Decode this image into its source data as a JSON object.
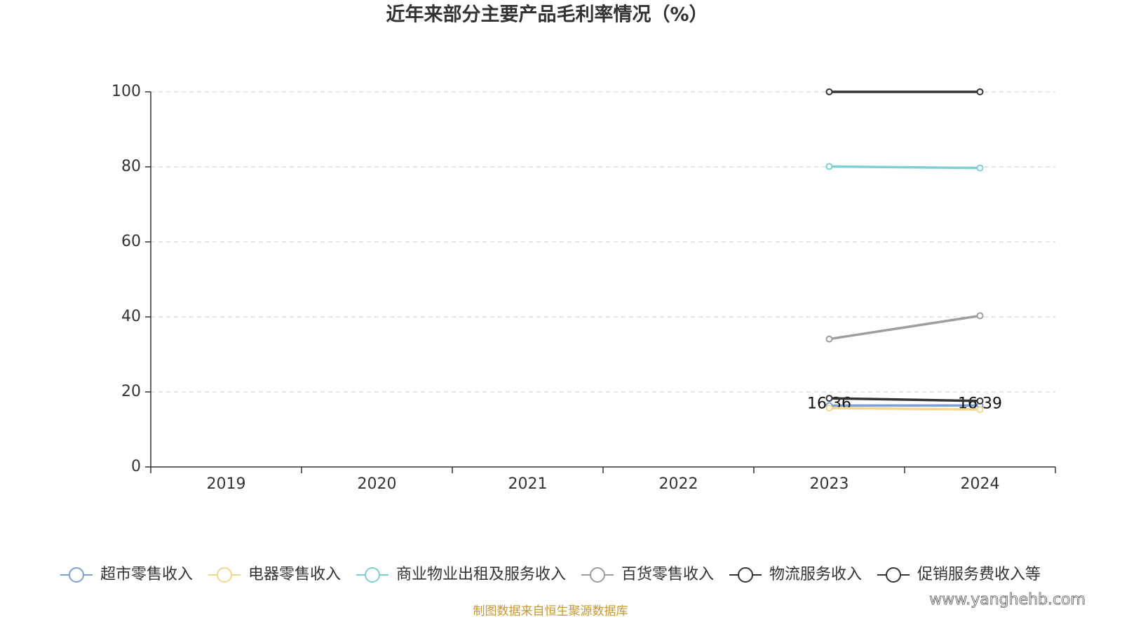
{
  "chart_data": {
    "type": "line",
    "title": "近年来部分主要产品毛利率情况（%）",
    "categories": [
      "2019",
      "2020",
      "2021",
      "2022",
      "2023",
      "2024"
    ],
    "series": [
      {
        "name": "超市零售收入",
        "color": "#7b9fd8",
        "values": [
          null,
          null,
          null,
          null,
          16.36,
          16.39
        ],
        "show_labels": true
      },
      {
        "name": "电器零售收入",
        "color": "#f7d58c",
        "values": [
          null,
          null,
          null,
          null,
          15.7,
          15.3
        ]
      },
      {
        "name": "商业物业出租及服务收入",
        "color": "#7dd0d4",
        "values": [
          null,
          null,
          null,
          null,
          80.1,
          79.7
        ]
      },
      {
        "name": "百货零售收入",
        "color": "#9e9e9e",
        "values": [
          null,
          null,
          null,
          null,
          34.1,
          40.3
        ]
      },
      {
        "name": "物流服务收入",
        "color": "#333333",
        "values": [
          null,
          null,
          null,
          null,
          100,
          100
        ]
      },
      {
        "name": "促销服务费收入等",
        "color": "#333333",
        "values": [
          null,
          null,
          null,
          null,
          18.3,
          17.6
        ]
      }
    ],
    "ylim": [
      0,
      100
    ],
    "yticks": [
      0,
      20,
      40,
      60,
      80,
      100
    ],
    "grid": true,
    "legend": "bottom",
    "source": "制图数据来自恒生聚源数据库",
    "watermark": "www.yanghehb.com"
  }
}
